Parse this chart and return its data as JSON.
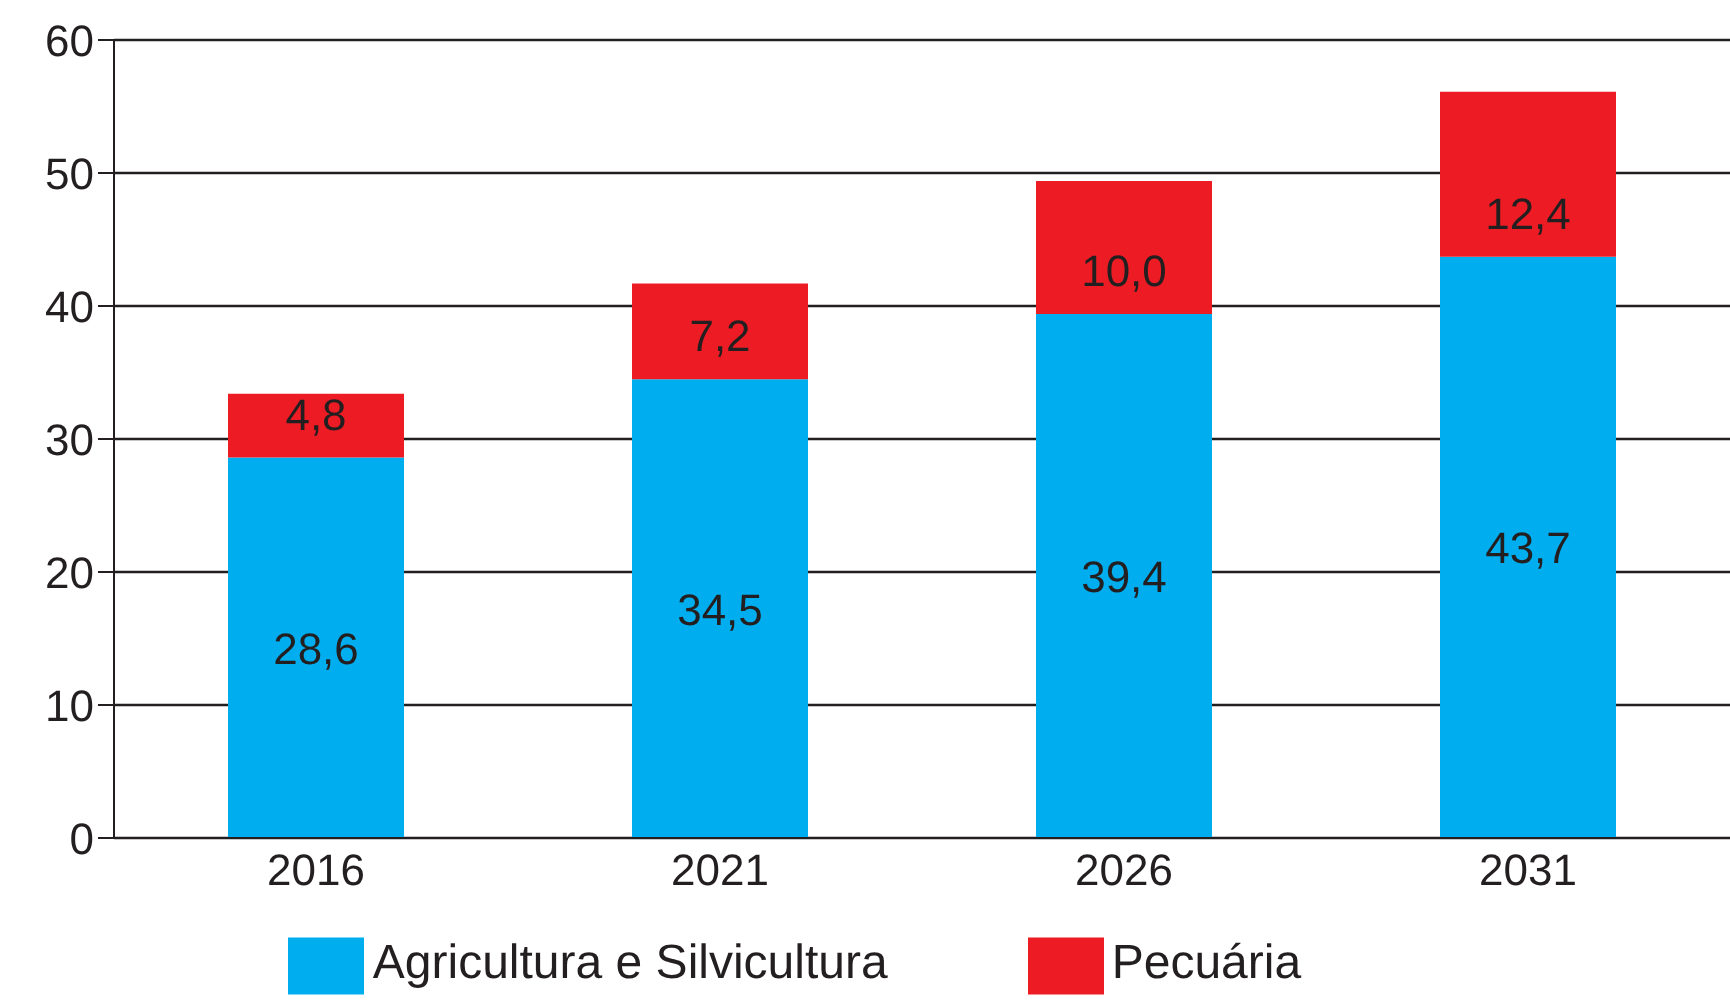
{
  "chart_data": {
    "type": "bar",
    "stacked": true,
    "categories": [
      "2016",
      "2021",
      "2026",
      "2031"
    ],
    "series": [
      {
        "name": "Agricultura e Silvicultura",
        "color": "#00aeef",
        "values": [
          28.6,
          34.5,
          39.4,
          43.7
        ],
        "value_labels": [
          "28,6",
          "34,5",
          "39,4",
          "43,7"
        ]
      },
      {
        "name": "Pecuária",
        "color": "#ed1c24",
        "values": [
          4.8,
          7.2,
          10.0,
          12.4
        ],
        "value_labels": [
          "4,8",
          "7,2",
          "10,0",
          "12,4"
        ]
      }
    ],
    "ylim": [
      0,
      60
    ],
    "yticks": [
      0,
      10,
      20,
      30,
      40,
      50,
      60
    ],
    "grid": "y",
    "legend": "bottom"
  }
}
